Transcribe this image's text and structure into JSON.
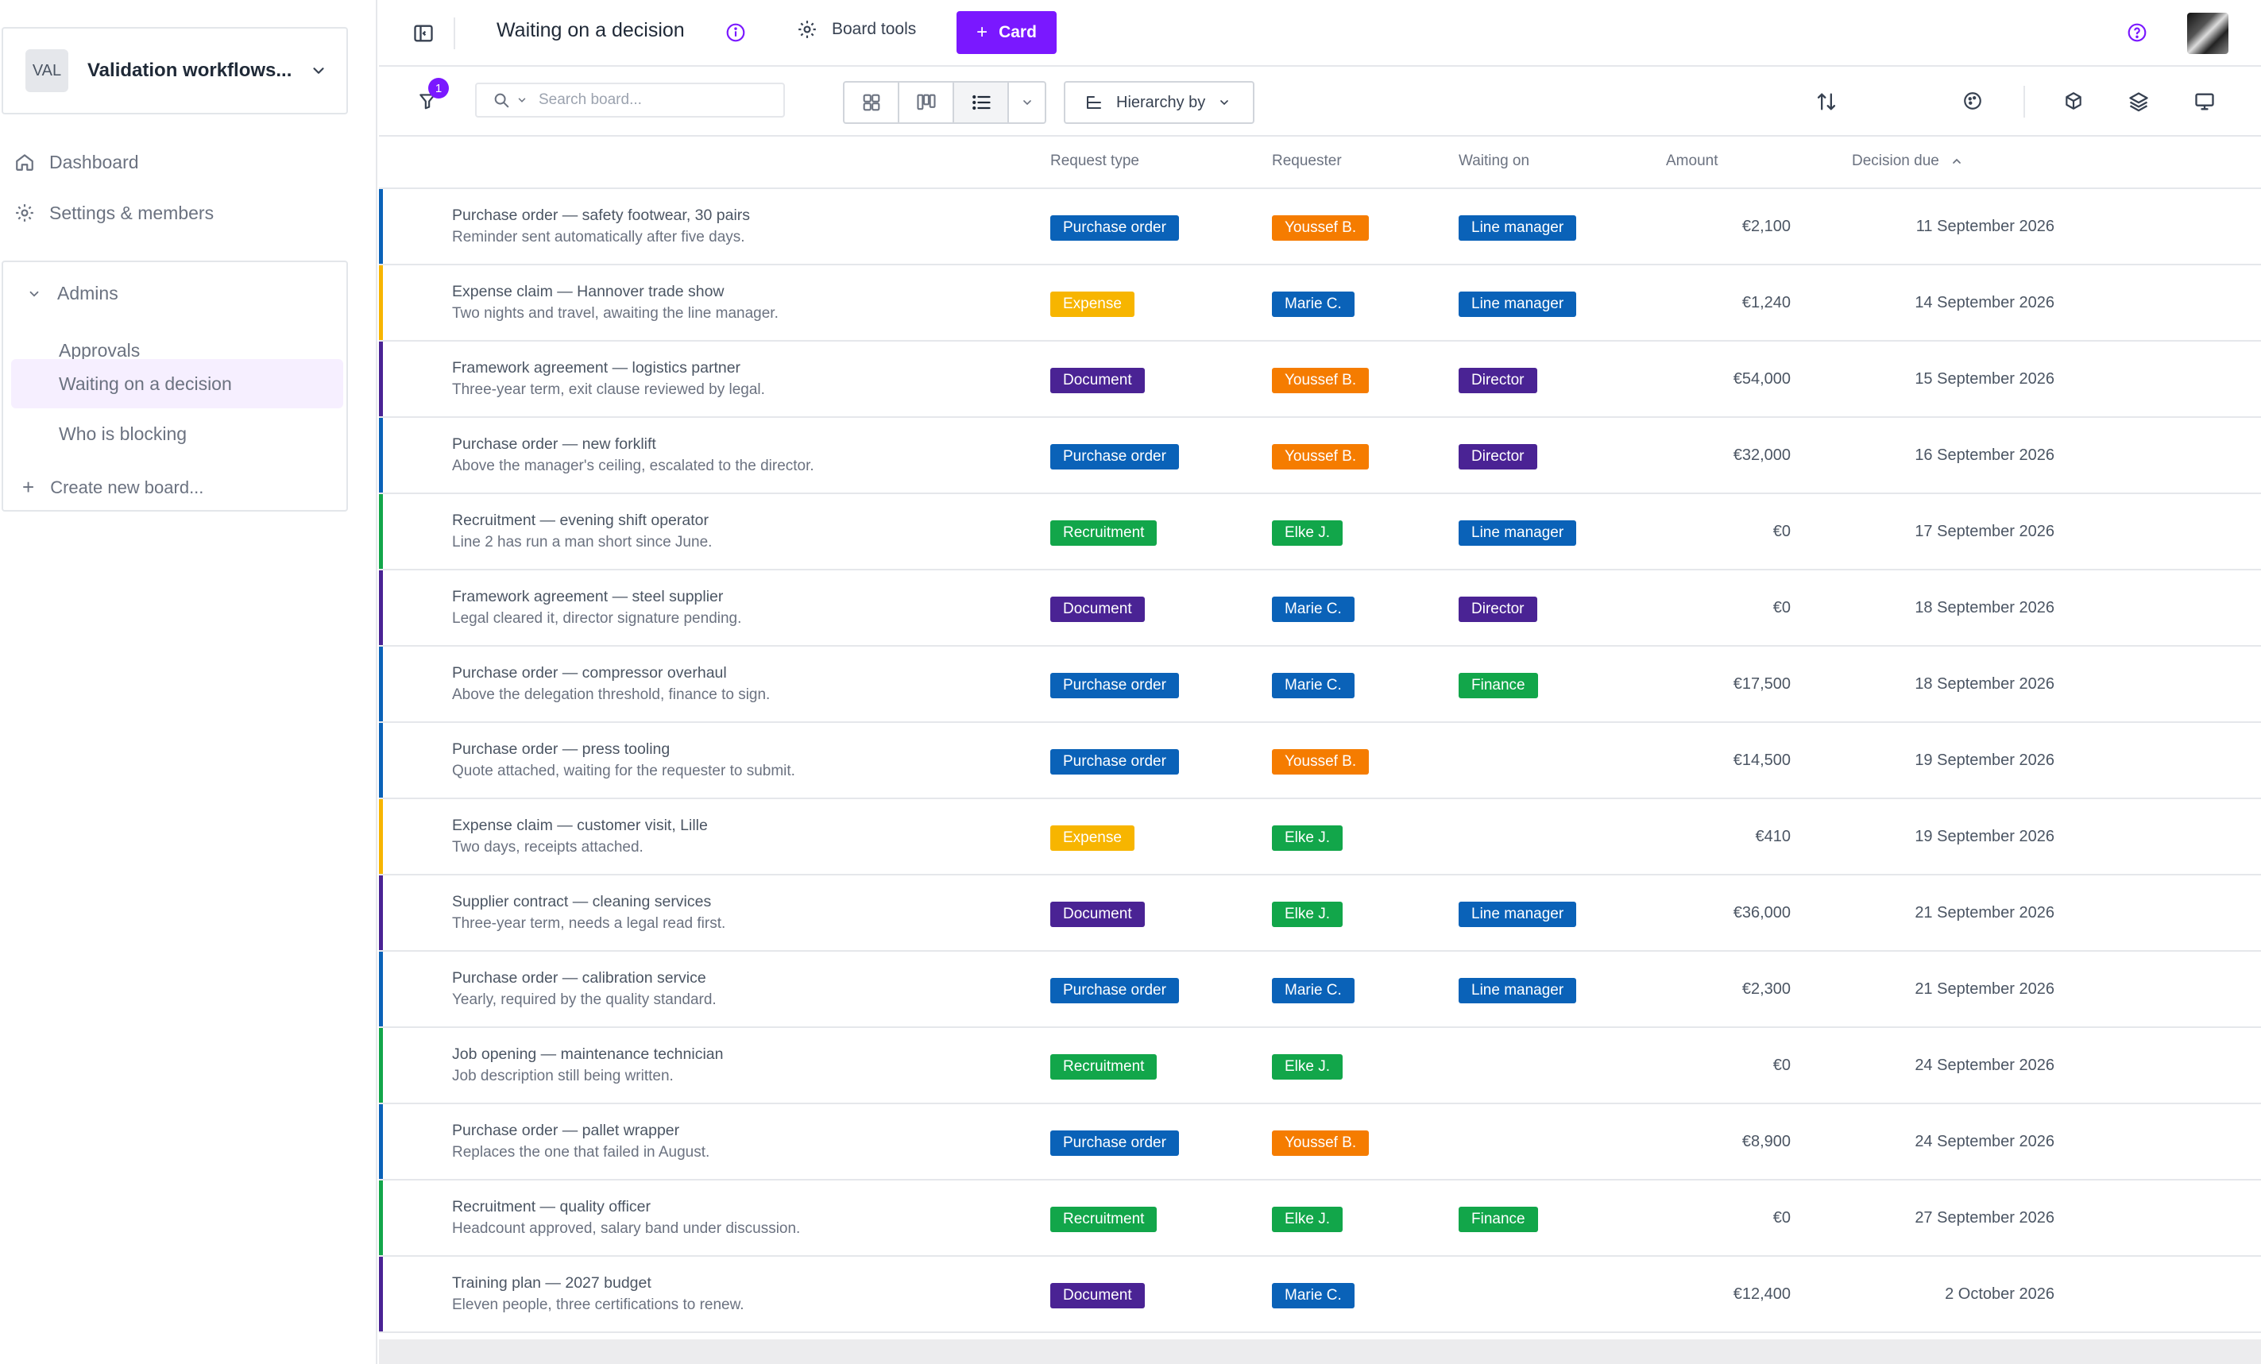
{
  "workspace": {
    "badge": "VAL",
    "name": "Validation workflows..."
  },
  "sidebar": {
    "nav": [
      {
        "label": "Dashboard",
        "icon": "home-icon"
      },
      {
        "label": "Settings & members",
        "icon": "gear-icon"
      }
    ],
    "group": {
      "label": "Admins",
      "items": [
        {
          "label": "Approvals",
          "active": false
        },
        {
          "label": "Waiting on a decision",
          "active": true
        },
        {
          "label": "Who is blocking",
          "active": false
        }
      ],
      "create_label": "Create new board..."
    }
  },
  "topbar": {
    "title": "Waiting on a decision",
    "board_tools": "Board tools",
    "card_button": "Card",
    "accent": "#7a18ff"
  },
  "toolbar": {
    "filter_count": "1",
    "search_placeholder": "Search board...",
    "hierarchy_label": "Hierarchy by",
    "active_view": "list"
  },
  "table": {
    "columns": {
      "type": "Request type",
      "requester": "Requester",
      "waiting": "Waiting on",
      "amount": "Amount",
      "due": "Decision due"
    },
    "sort": {
      "column": "due",
      "direction": "ascending"
    },
    "rows": [
      {
        "title": "Purchase order — safety footwear, 30 pairs",
        "desc": "Reminder sent automatically after five days.",
        "type": "Purchase order",
        "requester": "Youssef B.",
        "waiting": "Line manager",
        "amount": "€2,100",
        "due": "11 September 2026"
      },
      {
        "title": "Expense claim — Hannover trade show",
        "desc": "Two nights and travel, awaiting the line manager.",
        "type": "Expense",
        "requester": "Marie C.",
        "waiting": "Line manager",
        "amount": "€1,240",
        "due": "14 September 2026"
      },
      {
        "title": "Framework agreement — logistics partner",
        "desc": "Three-year term, exit clause reviewed by legal.",
        "type": "Document",
        "requester": "Youssef B.",
        "waiting": "Director",
        "amount": "€54,000",
        "due": "15 September 2026"
      },
      {
        "title": "Purchase order — new forklift",
        "desc": "Above the manager's ceiling, escalated to the director.",
        "type": "Purchase order",
        "requester": "Youssef B.",
        "waiting": "Director",
        "amount": "€32,000",
        "due": "16 September 2026"
      },
      {
        "title": "Recruitment — evening shift operator",
        "desc": "Line 2 has run a man short since June.",
        "type": "Recruitment",
        "requester": "Elke J.",
        "waiting": "Line manager",
        "amount": "€0",
        "due": "17 September 2026"
      },
      {
        "title": "Framework agreement — steel supplier",
        "desc": "Legal cleared it, director signature pending.",
        "type": "Document",
        "requester": "Marie C.",
        "waiting": "Director",
        "amount": "€0",
        "due": "18 September 2026"
      },
      {
        "title": "Purchase order — compressor overhaul",
        "desc": "Above the delegation threshold, finance to sign.",
        "type": "Purchase order",
        "requester": "Marie C.",
        "waiting": "Finance",
        "amount": "€17,500",
        "due": "18 September 2026"
      },
      {
        "title": "Purchase order — press tooling",
        "desc": "Quote attached, waiting for the requester to submit.",
        "type": "Purchase order",
        "requester": "Youssef B.",
        "waiting": "",
        "amount": "€14,500",
        "due": "19 September 2026"
      },
      {
        "title": "Expense claim — customer visit, Lille",
        "desc": "Two days, receipts attached.",
        "type": "Expense",
        "requester": "Elke J.",
        "waiting": "",
        "amount": "€410",
        "due": "19 September 2026"
      },
      {
        "title": "Supplier contract — cleaning services",
        "desc": "Three-year term, needs a legal read first.",
        "type": "Document",
        "requester": "Elke J.",
        "waiting": "Line manager",
        "amount": "€36,000",
        "due": "21 September 2026"
      },
      {
        "title": "Purchase order — calibration service",
        "desc": "Yearly, required by the quality standard.",
        "type": "Purchase order",
        "requester": "Marie C.",
        "waiting": "Line manager",
        "amount": "€2,300",
        "due": "21 September 2026"
      },
      {
        "title": "Job opening — maintenance technician",
        "desc": "Job description still being written.",
        "type": "Recruitment",
        "requester": "Elke J.",
        "waiting": "",
        "amount": "€0",
        "due": "24 September 2026"
      },
      {
        "title": "Purchase order — pallet wrapper",
        "desc": "Replaces the one that failed in August.",
        "type": "Purchase order",
        "requester": "Youssef B.",
        "waiting": "",
        "amount": "€8,900",
        "due": "24 September 2026"
      },
      {
        "title": "Recruitment — quality officer",
        "desc": "Headcount approved, salary band under discussion.",
        "type": "Recruitment",
        "requester": "Elke J.",
        "waiting": "Finance",
        "amount": "€0",
        "due": "27 September 2026"
      },
      {
        "title": "Training plan — 2027 budget",
        "desc": "Eleven people, three certifications to renew.",
        "type": "Document",
        "requester": "Marie C.",
        "waiting": "",
        "amount": "€12,400",
        "due": "2 October 2026"
      }
    ]
  },
  "colors": {
    "type": {
      "Purchase order": "#0a62b8",
      "Expense": "#f7b500",
      "Document": "#4a2394",
      "Recruitment": "#12a64a"
    },
    "requester": {
      "Youssef B.": "#f57c00",
      "Marie C.": "#0a62b8",
      "Elke J.": "#12a64a"
    },
    "waiting": {
      "Line manager": "#0a62b8",
      "Director": "#4a2394",
      "Finance": "#12a64a"
    }
  }
}
